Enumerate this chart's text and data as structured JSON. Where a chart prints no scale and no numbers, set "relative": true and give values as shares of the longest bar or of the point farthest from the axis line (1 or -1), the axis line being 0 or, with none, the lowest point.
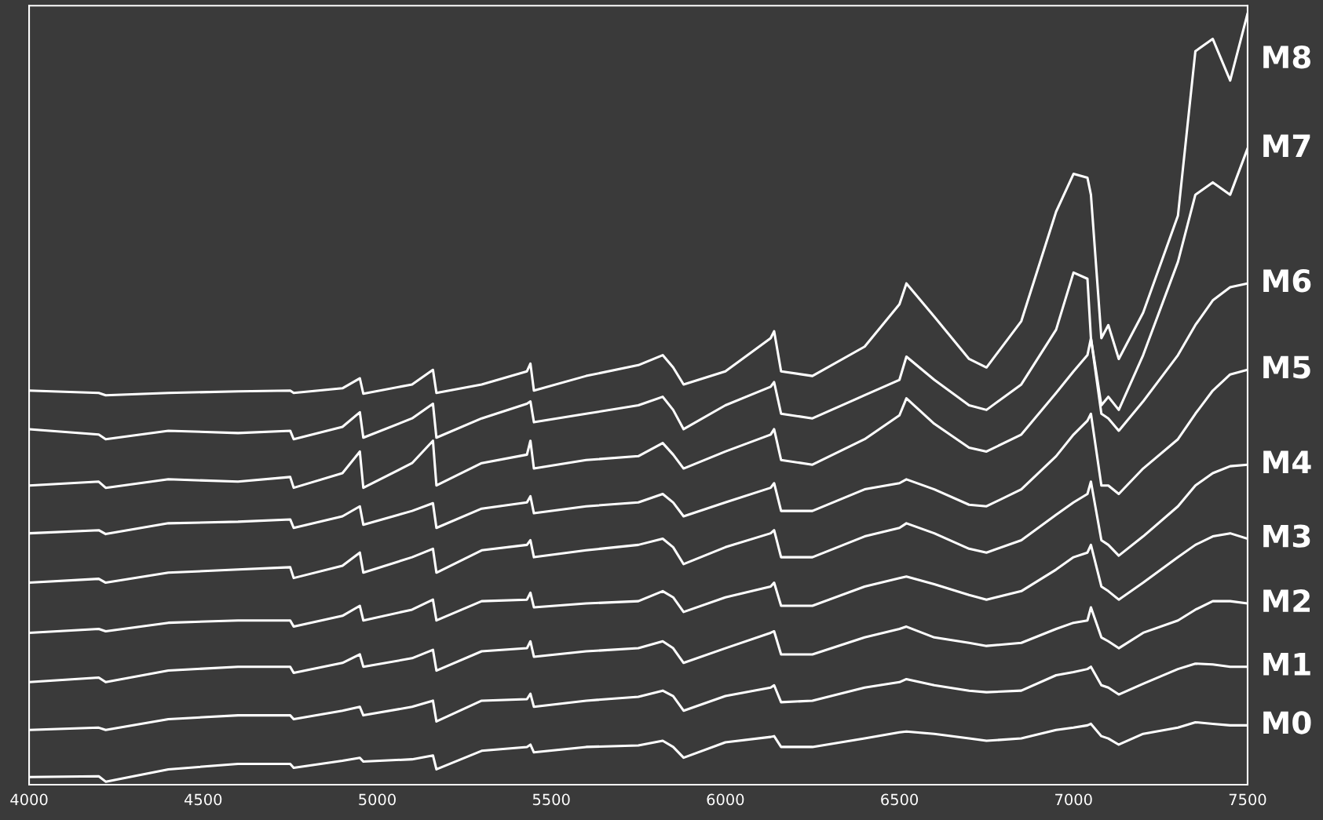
{
  "chart_data": {
    "type": "line",
    "relative": true,
    "legend": false,
    "grid": false,
    "marker": "none",
    "line_style": "solid",
    "x": [
      4000,
      4200,
      4220,
      4400,
      4600,
      4750,
      4760,
      4900,
      4950,
      4960,
      5100,
      5160,
      5170,
      5300,
      5430,
      5440,
      5450,
      5600,
      5750,
      5820,
      5850,
      5880,
      6000,
      6130,
      6140,
      6160,
      6250,
      6400,
      6500,
      6520,
      6600,
      6700,
      6750,
      6850,
      6950,
      7000,
      7040,
      7050,
      7080,
      7100,
      7130,
      7200,
      7300,
      7350,
      7400,
      7450,
      7500
    ],
    "xlim": [
      4000,
      7500
    ],
    "xticks": [
      4000,
      4500,
      5000,
      5500,
      6000,
      6500,
      7000,
      7500
    ],
    "series": [
      {
        "name": "M8",
        "color": "#ffffff",
        "values": [
          0.511,
          0.508,
          0.505,
          0.508,
          0.51,
          0.511,
          0.508,
          0.514,
          0.527,
          0.507,
          0.519,
          0.538,
          0.508,
          0.519,
          0.536,
          0.546,
          0.511,
          0.53,
          0.544,
          0.557,
          0.541,
          0.519,
          0.536,
          0.579,
          0.588,
          0.536,
          0.53,
          0.568,
          0.623,
          0.65,
          0.607,
          0.552,
          0.541,
          0.601,
          0.743,
          0.792,
          0.787,
          0.765,
          0.579,
          0.596,
          0.552,
          0.612,
          0.738,
          0.951,
          0.967,
          0.913,
          1
        ]
      },
      {
        "name": "M7",
        "color": "#ffffff",
        "values": [
          0.461,
          0.454,
          0.448,
          0.459,
          0.456,
          0.459,
          0.448,
          0.464,
          0.483,
          0.45,
          0.475,
          0.494,
          0.45,
          0.475,
          0.494,
          0.497,
          0.47,
          0.481,
          0.492,
          0.503,
          0.486,
          0.461,
          0.492,
          0.516,
          0.522,
          0.481,
          0.475,
          0.505,
          0.525,
          0.555,
          0.525,
          0.492,
          0.486,
          0.519,
          0.59,
          0.664,
          0.656,
          0.579,
          0.492,
          0.503,
          0.486,
          0.557,
          0.678,
          0.765,
          0.781,
          0.765,
          0.825
        ]
      },
      {
        "name": "M6",
        "color": "#ffffff",
        "values": [
          0.388,
          0.393,
          0.385,
          0.396,
          0.393,
          0.399,
          0.385,
          0.404,
          0.432,
          0.385,
          0.417,
          0.446,
          0.388,
          0.417,
          0.428,
          0.446,
          0.41,
          0.421,
          0.426,
          0.443,
          0.428,
          0.41,
          0.432,
          0.454,
          0.461,
          0.421,
          0.415,
          0.448,
          0.479,
          0.501,
          0.468,
          0.437,
          0.432,
          0.454,
          0.508,
          0.536,
          0.557,
          0.579,
          0.481,
          0.475,
          0.459,
          0.497,
          0.557,
          0.596,
          0.628,
          0.645,
          0.65
        ]
      },
      {
        "name": "M5",
        "color": "#ffffff",
        "values": [
          0.326,
          0.33,
          0.325,
          0.339,
          0.341,
          0.344,
          0.333,
          0.348,
          0.361,
          0.337,
          0.355,
          0.365,
          0.333,
          0.358,
          0.366,
          0.374,
          0.352,
          0.361,
          0.366,
          0.377,
          0.366,
          0.348,
          0.366,
          0.385,
          0.391,
          0.355,
          0.355,
          0.383,
          0.391,
          0.396,
          0.383,
          0.363,
          0.361,
          0.383,
          0.426,
          0.454,
          0.472,
          0.481,
          0.388,
          0.388,
          0.377,
          0.41,
          0.448,
          0.481,
          0.511,
          0.532,
          0.538
        ]
      },
      {
        "name": "M4",
        "color": "#ffffff",
        "values": [
          0.262,
          0.267,
          0.262,
          0.275,
          0.279,
          0.282,
          0.268,
          0.284,
          0.301,
          0.275,
          0.295,
          0.306,
          0.275,
          0.304,
          0.311,
          0.317,
          0.295,
          0.304,
          0.311,
          0.319,
          0.308,
          0.286,
          0.308,
          0.326,
          0.33,
          0.295,
          0.295,
          0.322,
          0.333,
          0.339,
          0.326,
          0.306,
          0.301,
          0.317,
          0.35,
          0.366,
          0.377,
          0.393,
          0.317,
          0.311,
          0.297,
          0.322,
          0.361,
          0.388,
          0.404,
          0.413,
          0.415
        ]
      },
      {
        "name": "M3",
        "color": "#ffffff",
        "values": [
          0.197,
          0.202,
          0.199,
          0.21,
          0.213,
          0.213,
          0.205,
          0.219,
          0.232,
          0.213,
          0.227,
          0.24,
          0.213,
          0.238,
          0.24,
          0.249,
          0.23,
          0.235,
          0.238,
          0.251,
          0.243,
          0.224,
          0.243,
          0.257,
          0.262,
          0.232,
          0.232,
          0.257,
          0.268,
          0.27,
          0.26,
          0.246,
          0.24,
          0.251,
          0.279,
          0.295,
          0.301,
          0.311,
          0.257,
          0.251,
          0.24,
          0.262,
          0.295,
          0.311,
          0.322,
          0.326,
          0.319
        ]
      },
      {
        "name": "M2",
        "color": "#ffffff",
        "values": [
          0.133,
          0.139,
          0.133,
          0.148,
          0.153,
          0.153,
          0.145,
          0.158,
          0.169,
          0.153,
          0.164,
          0.175,
          0.148,
          0.173,
          0.177,
          0.186,
          0.166,
          0.173,
          0.177,
          0.186,
          0.177,
          0.158,
          0.177,
          0.197,
          0.199,
          0.169,
          0.169,
          0.191,
          0.202,
          0.205,
          0.191,
          0.184,
          0.18,
          0.184,
          0.202,
          0.21,
          0.213,
          0.23,
          0.191,
          0.186,
          0.177,
          0.197,
          0.213,
          0.227,
          0.238,
          0.238,
          0.235
        ]
      },
      {
        "name": "M1",
        "color": "#ffffff",
        "values": [
          0.071,
          0.074,
          0.071,
          0.085,
          0.09,
          0.09,
          0.085,
          0.096,
          0.101,
          0.09,
          0.101,
          0.109,
          0.082,
          0.109,
          0.111,
          0.118,
          0.101,
          0.109,
          0.114,
          0.122,
          0.115,
          0.096,
          0.115,
          0.126,
          0.129,
          0.107,
          0.109,
          0.126,
          0.133,
          0.137,
          0.129,
          0.122,
          0.12,
          0.122,
          0.142,
          0.146,
          0.15,
          0.153,
          0.129,
          0.126,
          0.117,
          0.131,
          0.15,
          0.157,
          0.156,
          0.153,
          0.153
        ]
      },
      {
        "name": "M0",
        "color": "#ffffff",
        "values": [
          0.01,
          0.011,
          0.004,
          0.02,
          0.027,
          0.027,
          0.022,
          0.031,
          0.035,
          0.03,
          0.033,
          0.038,
          0.02,
          0.044,
          0.049,
          0.052,
          0.042,
          0.049,
          0.051,
          0.057,
          0.049,
          0.035,
          0.055,
          0.062,
          0.063,
          0.049,
          0.049,
          0.06,
          0.068,
          0.069,
          0.066,
          0.06,
          0.057,
          0.06,
          0.071,
          0.074,
          0.077,
          0.079,
          0.063,
          0.06,
          0.052,
          0.066,
          0.074,
          0.081,
          0.079,
          0.077,
          0.077
        ]
      }
    ]
  }
}
